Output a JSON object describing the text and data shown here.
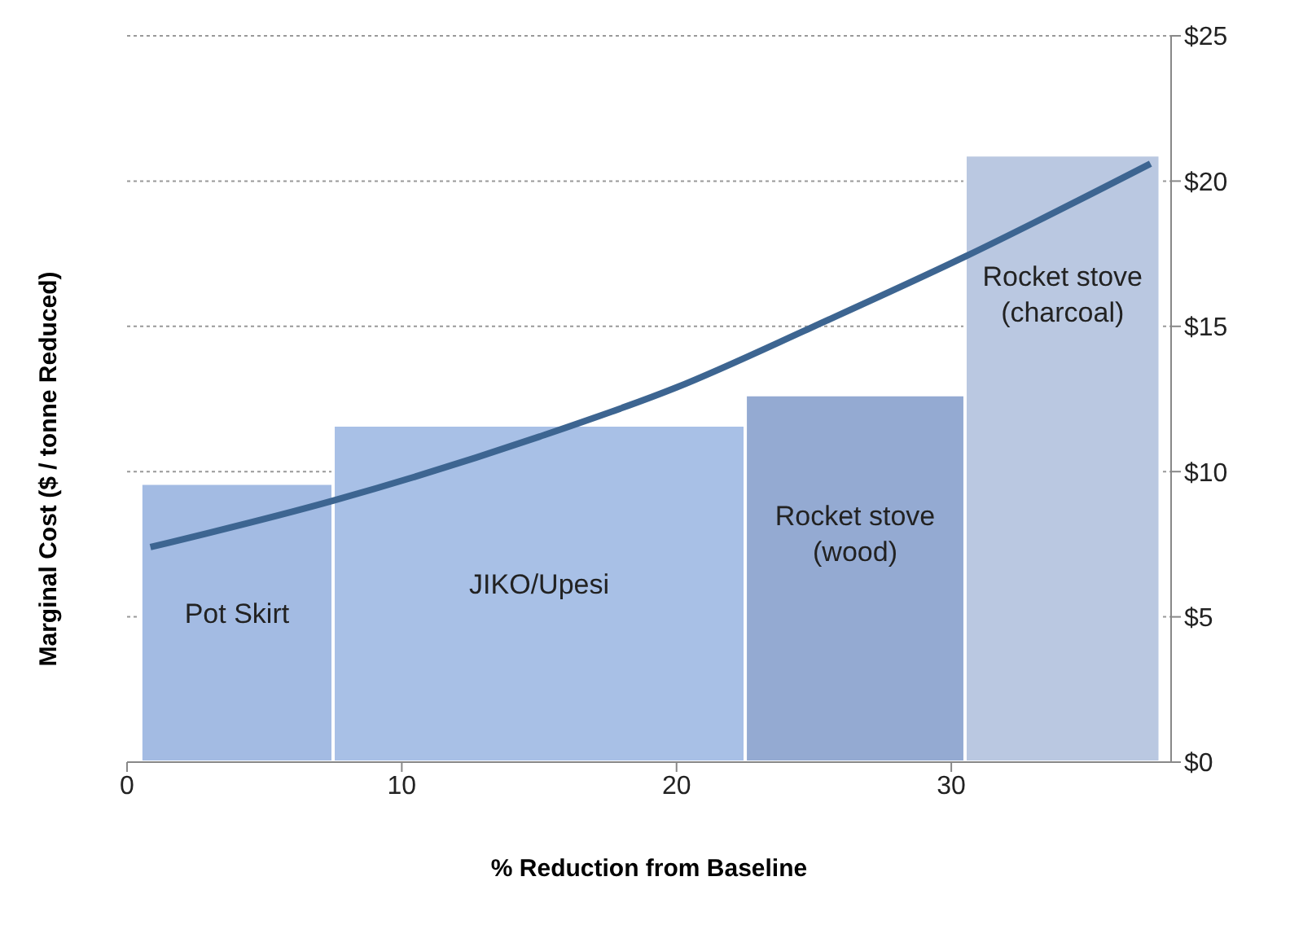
{
  "chart_data": {
    "type": "histogram",
    "xlabel": "% Reduction from Baseline",
    "ylabel": "Marginal Cost ($ / tonne Reduced)",
    "bins": [
      0.5,
      7.5,
      22.5,
      30.5,
      37.6
    ],
    "values": [
      9.6,
      11.6,
      12.65,
      20.9
    ],
    "colors": [
      "#a3bbe3",
      "#a8c0e6",
      "#94aad2",
      "#bac8e1"
    ],
    "series": [
      {
        "type": "line",
        "color": "#3d6591",
        "x": [
          0.85,
          7.5,
          15,
          20,
          25,
          30.5,
          37.25
        ],
        "values": [
          7.4,
          9.0,
          11.2,
          12.9,
          15.0,
          17.4,
          20.6
        ]
      }
    ],
    "annotations": [
      "Pot Skirt",
      "JIKO/Upesi",
      "Rocket stove (wood)",
      "Rocket stove (charcoal)"
    ],
    "xlim": [
      0,
      38
    ],
    "xticks": [
      0,
      10,
      20,
      30
    ],
    "ylim": [
      0,
      25
    ],
    "yticks": [
      {
        "value": 0,
        "label": "$0"
      },
      {
        "value": 5,
        "label": "$5"
      },
      {
        "value": 10,
        "label": "$10"
      },
      {
        "value": 15,
        "label": "$15"
      },
      {
        "value": 20,
        "label": "$20"
      },
      {
        "value": 25,
        "label": "$25"
      }
    ],
    "grid": "y",
    "marker": "none",
    "line_style": "solid",
    "legend": false
  }
}
